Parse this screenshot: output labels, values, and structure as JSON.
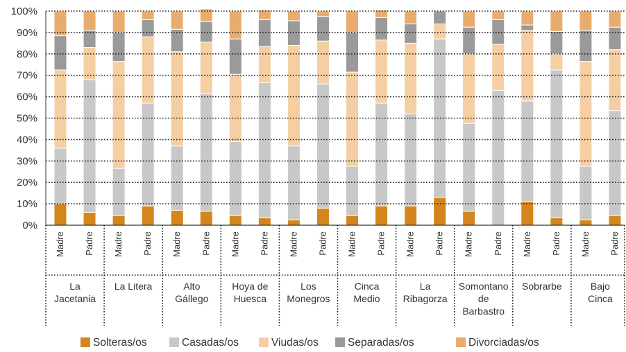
{
  "chart_data": {
    "type": "bar",
    "stacked": true,
    "percent_stacked": true,
    "ylim": [
      0,
      100
    ],
    "y_ticks": [
      "0%",
      "10%",
      "20%",
      "30%",
      "40%",
      "50%",
      "60%",
      "70%",
      "80%",
      "90%",
      "100%"
    ],
    "grid": true,
    "legend_position": "bottom",
    "groups": [
      {
        "name": [
          "La",
          "Jacetania"
        ]
      },
      {
        "name": [
          "La Litera"
        ]
      },
      {
        "name": [
          "Alto",
          "Gállego"
        ]
      },
      {
        "name": [
          "Hoya de",
          "Huesca"
        ]
      },
      {
        "name": [
          "Los",
          "Monegros"
        ]
      },
      {
        "name": [
          "Cinca",
          "Medio"
        ]
      },
      {
        "name": [
          "La",
          "Ribagorza"
        ]
      },
      {
        "name": [
          "Somontano",
          "de",
          "Barbastro"
        ]
      },
      {
        "name": [
          "Sobrarbe"
        ]
      },
      {
        "name": [
          "Bajo",
          "Cinca"
        ]
      }
    ],
    "sub_categories": [
      "Madre",
      "Padre"
    ],
    "series": [
      {
        "name": "Solteras/os",
        "color": "#d4861c",
        "values": [
          10,
          6,
          4.5,
          9,
          7,
          6.5,
          4.5,
          3.5,
          2.5,
          8,
          4.5,
          9,
          9,
          13,
          6.5,
          0,
          11,
          3.5,
          2.5,
          4.5
        ]
      },
      {
        "name": "Casadas/os",
        "color": "#c8c8c8",
        "values": [
          26,
          62,
          22,
          48,
          30,
          55,
          34.5,
          63,
          34.5,
          58,
          23,
          48,
          43,
          74,
          41,
          63,
          47,
          69,
          25,
          49
        ]
      },
      {
        "name": "Viudas/os",
        "color": "#f5cfa3",
        "values": [
          36.5,
          15,
          50,
          31,
          44,
          24,
          31.5,
          17,
          47,
          20,
          44,
          29.5,
          33,
          7,
          32.5,
          21.5,
          33,
          7.5,
          49,
          28.5
        ]
      },
      {
        "name": "Separadas/os",
        "color": "#9a9a9a",
        "values": [
          16,
          8,
          13.5,
          8,
          10.5,
          9.5,
          16.5,
          12.5,
          11.5,
          11.5,
          18.5,
          10.5,
          9,
          6,
          12.5,
          11.5,
          2.5,
          10.5,
          14.5,
          10.5
        ]
      },
      {
        "name": "Divorciadas/os",
        "color": "#e8ad6e",
        "values": [
          11.5,
          9,
          10,
          4,
          8.5,
          6,
          13,
          4.5,
          4.5,
          2.5,
          10,
          3.5,
          6,
          0,
          7.5,
          4,
          6.5,
          9.5,
          9,
          7.5
        ]
      }
    ]
  }
}
